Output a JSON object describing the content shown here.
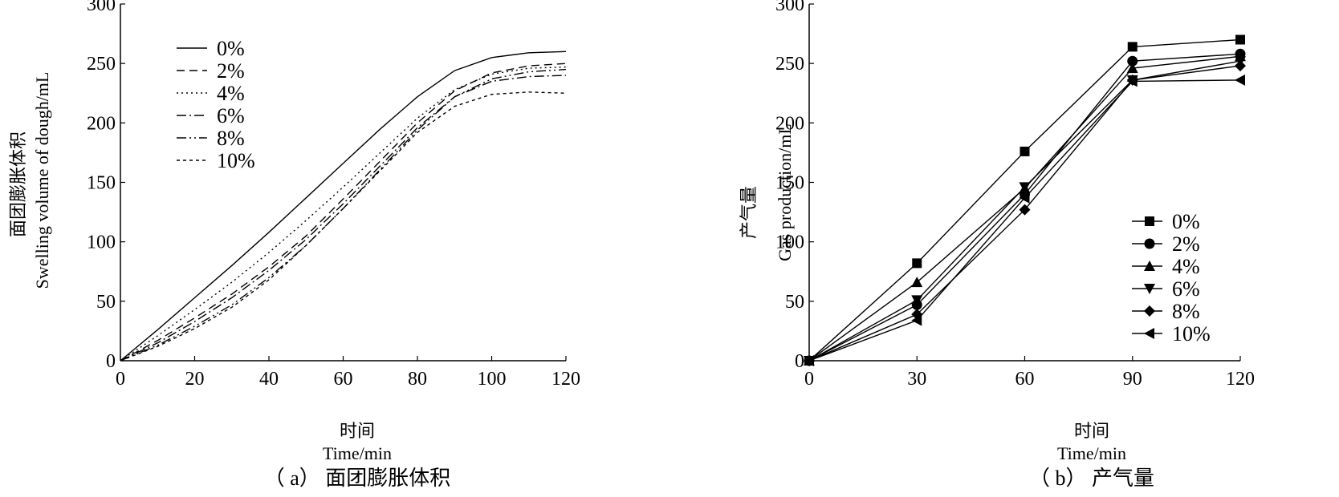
{
  "chart_data": [
    {
      "panel": "a",
      "type": "line",
      "caption": "（ a） 面团膨胀体积",
      "xlabel_cn": "时间",
      "xlabel_en": "Time/min",
      "ylabel_cn": "面团膨胀体积",
      "ylabel_en": "Swelling volume of dough/mL",
      "xlim": [
        0,
        120
      ],
      "ylim": [
        0,
        300
      ],
      "xticks": [
        "0",
        "20",
        "40",
        "60",
        "80",
        "100",
        "120"
      ],
      "yticks": [
        "0",
        "50",
        "100",
        "150",
        "200",
        "250",
        "300"
      ],
      "legend_position": "top-left",
      "x": [
        0,
        10,
        20,
        30,
        40,
        50,
        60,
        70,
        80,
        90,
        100,
        110,
        120
      ],
      "series": [
        {
          "name": "0%",
          "dash": "none",
          "values": [
            0,
            26,
            53,
            80,
            108,
            137,
            166,
            195,
            222,
            244,
            255,
            259,
            260
          ]
        },
        {
          "name": "2%",
          "dash": "10 6",
          "values": [
            0,
            17,
            36,
            56,
            79,
            105,
            136,
            168,
            200,
            227,
            242,
            248,
            250
          ]
        },
        {
          "name": "4%",
          "dash": "2 4",
          "values": [
            0,
            21,
            43,
            66,
            91,
            118,
            146,
            175,
            204,
            228,
            241,
            246,
            247
          ]
        },
        {
          "name": "6%",
          "dash": "12 4 2 4",
          "values": [
            0,
            15,
            33,
            53,
            76,
            102,
            132,
            164,
            196,
            222,
            235,
            239,
            240
          ]
        },
        {
          "name": "8%",
          "dash": "12 4 2 4 2 4",
          "values": [
            0,
            13,
            29,
            47,
            70,
            97,
            128,
            161,
            194,
            222,
            237,
            243,
            245
          ]
        },
        {
          "name": "10%",
          "dash": "4 4",
          "values": [
            0,
            12,
            27,
            45,
            68,
            97,
            128,
            160,
            192,
            214,
            224,
            226,
            225
          ]
        }
      ]
    },
    {
      "panel": "b",
      "type": "line",
      "caption": "（ b） 产气量",
      "xlabel_cn": "时间",
      "xlabel_en": "Time/min",
      "ylabel_cn": "产气量",
      "ylabel_en": "Gas production/mL",
      "xlim": [
        0,
        120
      ],
      "ylim": [
        0,
        300
      ],
      "xticks": [
        "0",
        "30",
        "60",
        "90",
        "120"
      ],
      "yticks": [
        "0",
        "50",
        "100",
        "150",
        "200",
        "250",
        "300"
      ],
      "legend_position": "bottom-right",
      "x": [
        0,
        30,
        60,
        90,
        120
      ],
      "series": [
        {
          "name": "0%",
          "marker": "square",
          "values": [
            0,
            82,
            176,
            264,
            270
          ]
        },
        {
          "name": "2%",
          "marker": "circle",
          "values": [
            0,
            47,
            140,
            252,
            258
          ]
        },
        {
          "name": "4%",
          "marker": "triangle-up",
          "values": [
            0,
            66,
            145,
            246,
            256
          ]
        },
        {
          "name": "6%",
          "marker": "triangle-down",
          "values": [
            0,
            51,
            146,
            236,
            252
          ]
        },
        {
          "name": "8%",
          "marker": "diamond",
          "values": [
            0,
            39,
            127,
            236,
            248
          ]
        },
        {
          "name": "10%",
          "marker": "triangle-left",
          "values": [
            0,
            34,
            137,
            235,
            236
          ]
        }
      ]
    }
  ]
}
